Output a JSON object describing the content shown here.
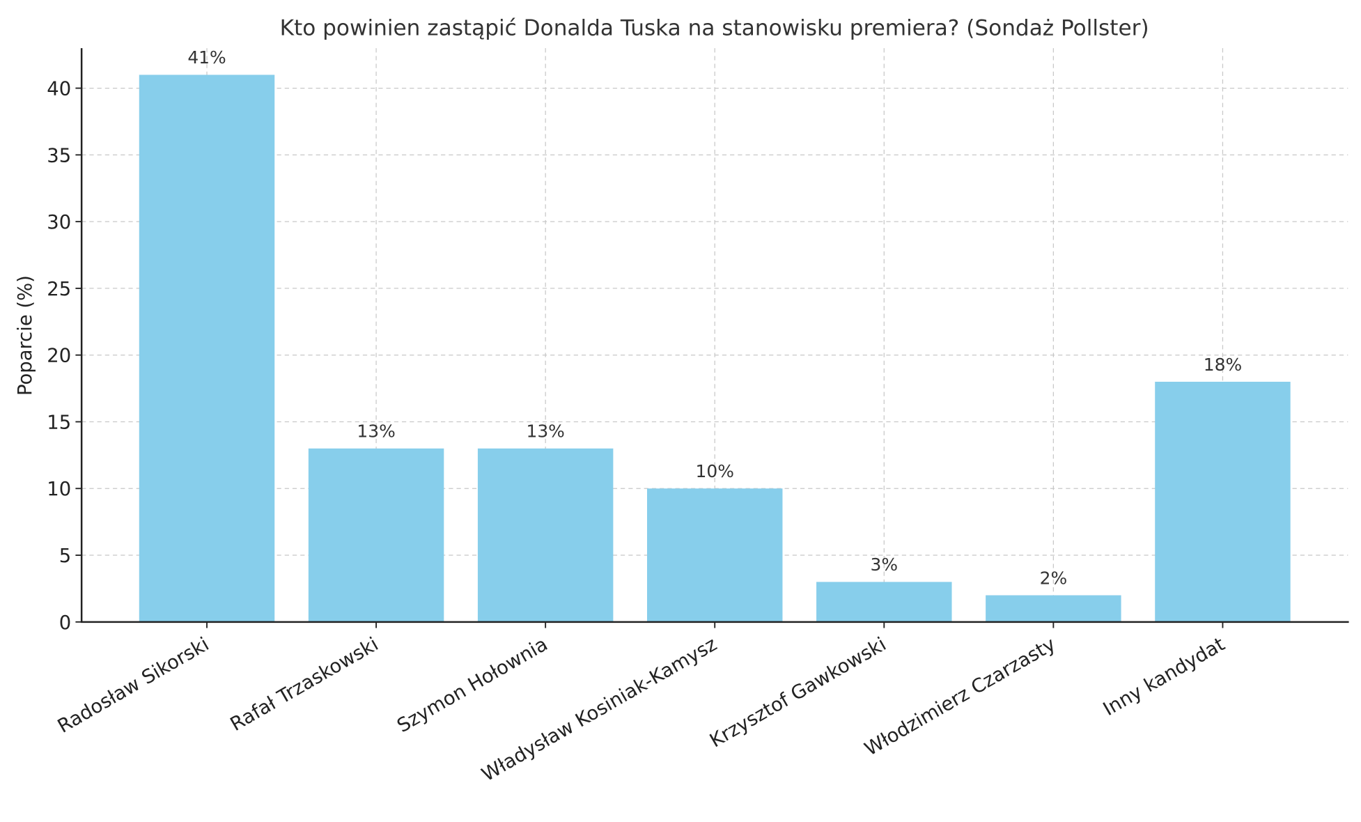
{
  "chart_data": {
    "type": "bar",
    "title": "Kto powinien zastąpić Donalda Tuska na stanowisku premiera? (Sondaż Pollster)",
    "xlabel": "",
    "ylabel": "Poparcie (%)",
    "categories": [
      "Radosław Sikorski",
      "Rafał Trzaskowski",
      "Szymon Hołownia",
      "Władysław Kosiniak-Kamysz",
      "Krzysztof Gawkowski",
      "Włodzimierz Czarzasty",
      "Inny kandydat"
    ],
    "values": [
      41,
      13,
      13,
      10,
      3,
      2,
      18
    ],
    "data_labels": [
      "41%",
      "13%",
      "13%",
      "10%",
      "3%",
      "2%",
      "18%"
    ],
    "ylim": [
      0,
      43
    ],
    "yticks": [
      0,
      5,
      10,
      15,
      20,
      25,
      30,
      35,
      40
    ],
    "ytick_labels": [
      "0",
      "5",
      "10",
      "15",
      "20",
      "25",
      "30",
      "35",
      "40"
    ],
    "grid": true,
    "bar_color": "#87ceeb",
    "x_label_rotation_deg": 30
  }
}
